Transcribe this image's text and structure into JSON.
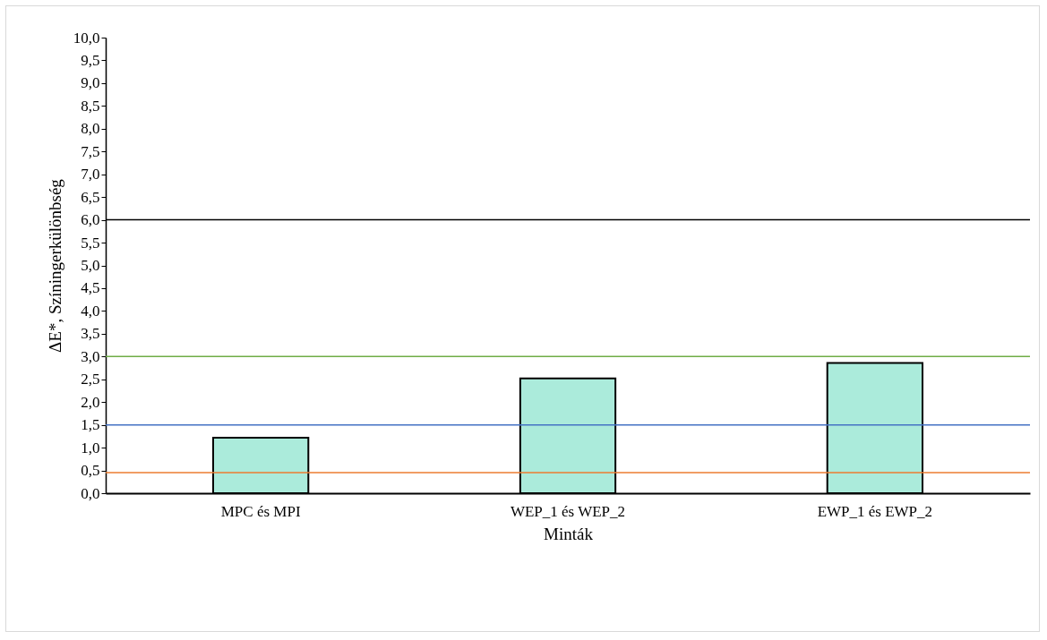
{
  "chart_data": {
    "type": "bar",
    "xlabel": "Minták",
    "ylabel": "ΔE*, Színingerkülönbség",
    "categories": [
      "MPC és MPI",
      "WEP_1 és WEP_2",
      "EWP_1 és EWP_2"
    ],
    "values": [
      1.22,
      2.52,
      2.86
    ],
    "color": "#abebdb",
    "ylim": [
      0,
      10
    ],
    "yticks": [
      {
        "value": 0,
        "label": "0,0"
      },
      {
        "value": 0.5,
        "label": "0,5"
      },
      {
        "value": 1,
        "label": "1,0"
      },
      {
        "value": 1.5,
        "label": "1,5"
      },
      {
        "value": 2,
        "label": "2,0"
      },
      {
        "value": 2.5,
        "label": "2,5"
      },
      {
        "value": 3,
        "label": "3,0"
      },
      {
        "value": 3.5,
        "label": "3,5"
      },
      {
        "value": 4,
        "label": "4,0"
      },
      {
        "value": 4.5,
        "label": "4,5"
      },
      {
        "value": 5,
        "label": "5,0"
      },
      {
        "value": 5.5,
        "label": "5,5"
      },
      {
        "value": 6,
        "label": "6,0"
      },
      {
        "value": 6.5,
        "label": "6,5"
      },
      {
        "value": 7,
        "label": "7,0"
      },
      {
        "value": 7.5,
        "label": "7,5"
      },
      {
        "value": 8,
        "label": "8,0"
      },
      {
        "value": 8.5,
        "label": "8,5"
      },
      {
        "value": 9,
        "label": "9,0"
      },
      {
        "value": 9.5,
        "label": "9,5"
      },
      {
        "value": 10,
        "label": "10,0"
      }
    ],
    "ref_lines": [
      {
        "axis": "y",
        "value": 6,
        "color": "#000000"
      },
      {
        "axis": "y",
        "value": 3,
        "color": "#70ad47"
      },
      {
        "axis": "y",
        "value": 1.5,
        "color": "#4472c4"
      },
      {
        "axis": "y",
        "value": 0.45,
        "color": "#ed7d31"
      }
    ],
    "grid": false
  }
}
